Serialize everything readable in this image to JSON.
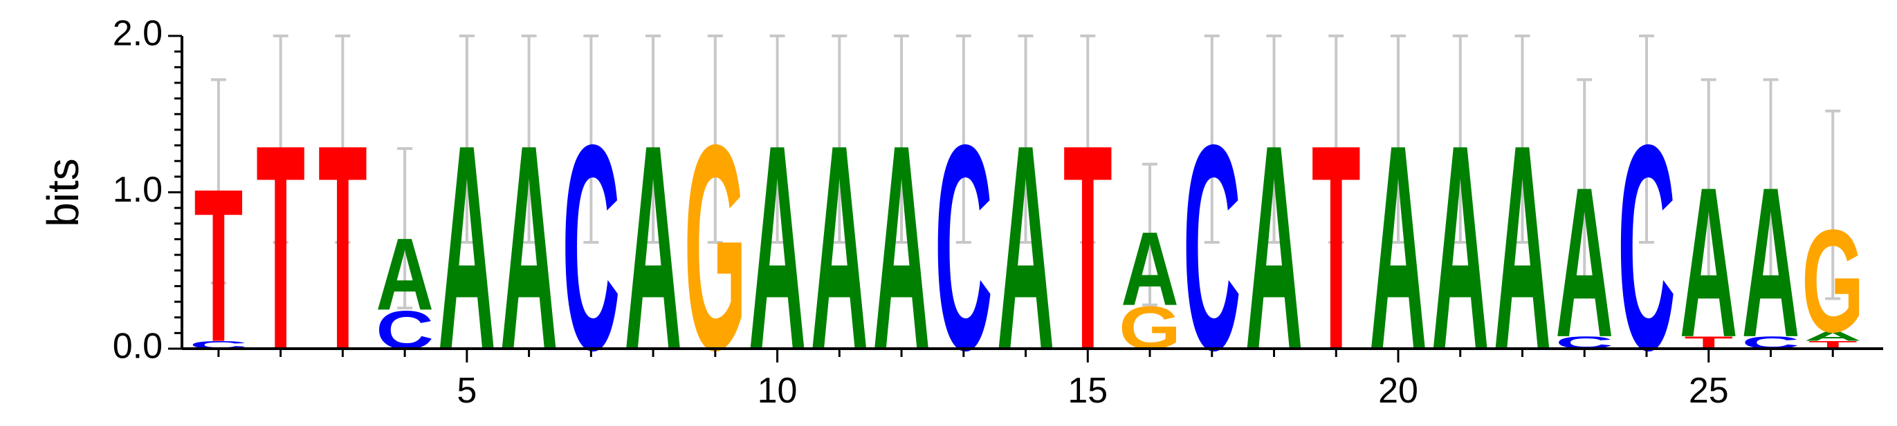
{
  "chart_data": {
    "type": "sequence-logo",
    "ylabel": "bits",
    "ylim": [
      0,
      2
    ],
    "y_ticks": [
      {
        "value": 0,
        "label": "0.0"
      },
      {
        "value": 1,
        "label": "1.0"
      },
      {
        "value": 2,
        "label": "2.0"
      }
    ],
    "x_ticks": [
      {
        "value": 5,
        "label": "5"
      },
      {
        "value": 10,
        "label": "10"
      },
      {
        "value": 15,
        "label": "15"
      },
      {
        "value": 20,
        "label": "20"
      },
      {
        "value": 25,
        "label": "25"
      }
    ],
    "colors": {
      "A": "#008000",
      "C": "#0000ff",
      "G": "#ffa500",
      "T": "#ff0000",
      "errorbar": "#c8c8c8"
    },
    "positions": [
      {
        "pos": 1,
        "stack": [
          [
            "C",
            0.05
          ],
          [
            "T",
            1.0
          ]
        ],
        "err": [
          0.42,
          1.72
        ]
      },
      {
        "pos": 2,
        "stack": [
          [
            "T",
            1.34
          ]
        ],
        "err": [
          0.68,
          2.0
        ]
      },
      {
        "pos": 3,
        "stack": [
          [
            "T",
            1.34
          ]
        ],
        "err": [
          0.68,
          2.0
        ]
      },
      {
        "pos": 4,
        "stack": [
          [
            "C",
            0.25
          ],
          [
            "A",
            0.47
          ]
        ],
        "err": [
          0.26,
          1.28
        ]
      },
      {
        "pos": 5,
        "stack": [
          [
            "A",
            1.34
          ]
        ],
        "err": [
          0.68,
          2.0
        ]
      },
      {
        "pos": 6,
        "stack": [
          [
            "A",
            1.34
          ]
        ],
        "err": [
          0.68,
          2.0
        ]
      },
      {
        "pos": 7,
        "stack": [
          [
            "C",
            1.34
          ]
        ],
        "err": [
          0.68,
          2.0
        ]
      },
      {
        "pos": 8,
        "stack": [
          [
            "A",
            1.34
          ]
        ],
        "err": [
          0.68,
          2.0
        ]
      },
      {
        "pos": 9,
        "stack": [
          [
            "G",
            1.34
          ]
        ],
        "err": [
          0.68,
          2.0
        ]
      },
      {
        "pos": 10,
        "stack": [
          [
            "A",
            1.34
          ]
        ],
        "err": [
          0.68,
          2.0
        ]
      },
      {
        "pos": 11,
        "stack": [
          [
            "A",
            1.34
          ]
        ],
        "err": [
          0.68,
          2.0
        ]
      },
      {
        "pos": 12,
        "stack": [
          [
            "A",
            1.34
          ]
        ],
        "err": [
          0.68,
          2.0
        ]
      },
      {
        "pos": 13,
        "stack": [
          [
            "C",
            1.34
          ]
        ],
        "err": [
          0.68,
          2.0
        ]
      },
      {
        "pos": 14,
        "stack": [
          [
            "A",
            1.34
          ]
        ],
        "err": [
          0.68,
          2.0
        ]
      },
      {
        "pos": 15,
        "stack": [
          [
            "T",
            1.34
          ]
        ],
        "err": [
          0.68,
          2.0
        ]
      },
      {
        "pos": 16,
        "stack": [
          [
            "G",
            0.28
          ],
          [
            "A",
            0.48
          ]
        ],
        "err": [
          0.28,
          1.18
        ]
      },
      {
        "pos": 17,
        "stack": [
          [
            "C",
            1.34
          ]
        ],
        "err": [
          0.68,
          2.0
        ]
      },
      {
        "pos": 18,
        "stack": [
          [
            "A",
            1.34
          ]
        ],
        "err": [
          0.68,
          2.0
        ]
      },
      {
        "pos": 19,
        "stack": [
          [
            "T",
            1.34
          ]
        ],
        "err": [
          0.68,
          2.0
        ]
      },
      {
        "pos": 20,
        "stack": [
          [
            "A",
            1.34
          ]
        ],
        "err": [
          0.68,
          2.0
        ]
      },
      {
        "pos": 21,
        "stack": [
          [
            "A",
            1.34
          ]
        ],
        "err": [
          0.68,
          2.0
        ]
      },
      {
        "pos": 22,
        "stack": [
          [
            "A",
            1.34
          ]
        ],
        "err": [
          0.68,
          2.0
        ]
      },
      {
        "pos": 23,
        "stack": [
          [
            "C",
            0.08
          ],
          [
            "A",
            0.98
          ]
        ],
        "err": [
          0.42,
          1.72
        ]
      },
      {
        "pos": 24,
        "stack": [
          [
            "C",
            1.34
          ]
        ],
        "err": [
          0.68,
          2.0
        ]
      },
      {
        "pos": 25,
        "stack": [
          [
            "T",
            0.08
          ],
          [
            "A",
            0.98
          ]
        ],
        "err": [
          0.42,
          1.72
        ]
      },
      {
        "pos": 26,
        "stack": [
          [
            "C",
            0.08
          ],
          [
            "A",
            0.98
          ]
        ],
        "err": [
          0.42,
          1.72
        ]
      },
      {
        "pos": 27,
        "stack": [
          [
            "T",
            0.05
          ],
          [
            "A",
            0.06
          ],
          [
            "G",
            0.67
          ]
        ],
        "err": [
          0.32,
          1.52
        ]
      }
    ]
  }
}
